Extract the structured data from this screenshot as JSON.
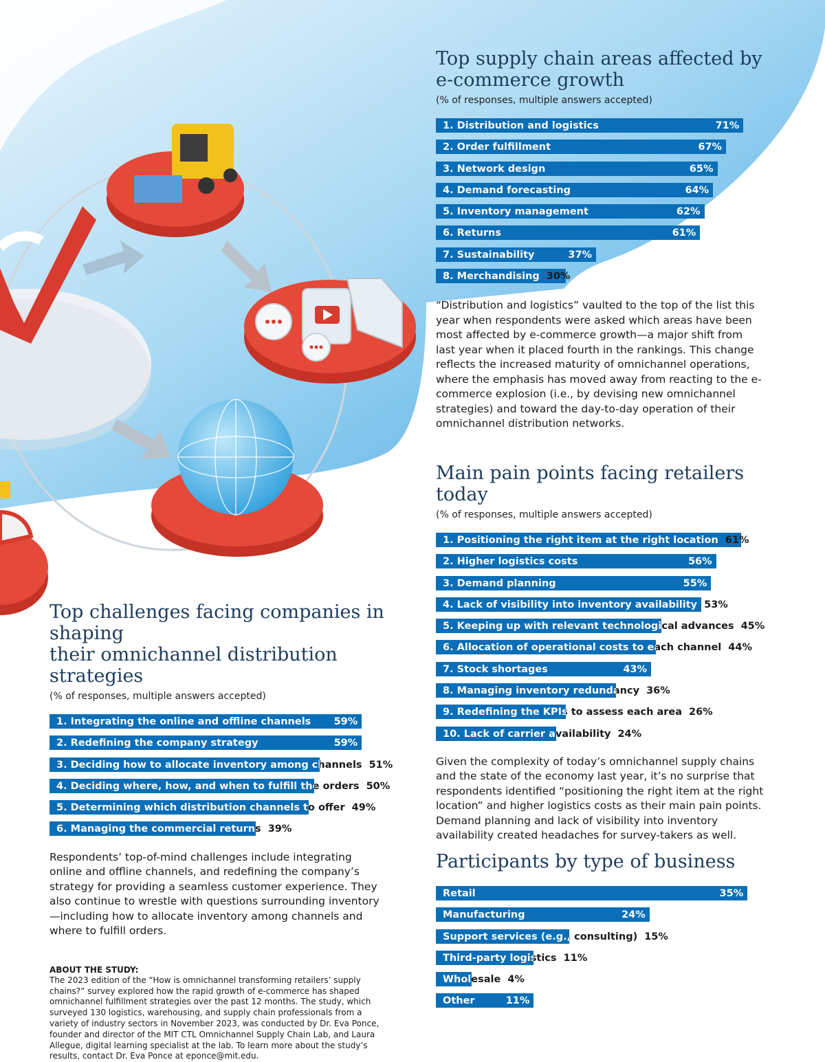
{
  "colors": {
    "bar": "#0a6fb8",
    "title": "#1d3c5c",
    "sky_light": "#e7f3fb",
    "sky_mid": "#9fd3f0",
    "sky_deep": "#3ea6e3",
    "platform_red": "#e4493a",
    "forklift_yellow": "#f2c21b"
  },
  "chart_data": [
    {
      "type": "bar",
      "orientation": "horizontal",
      "title": "Top supply chain areas affected by e-commerce growth",
      "subtitle": "(% of responses, multiple answers accepted)",
      "categories": [
        "1. Distribution and logistics",
        "2. Order fulfillment",
        "3. Network design",
        "4. Demand forecasting",
        "5. Inventory management",
        "6. Returns",
        "7. Sustainability",
        "8. Merchandising"
      ],
      "values": [
        71,
        67,
        65,
        64,
        62,
        61,
        37,
        30
      ],
      "value_labels": [
        "71%",
        "67%",
        "65%",
        "64%",
        "62%",
        "61%",
        "37%",
        "30%"
      ]
    },
    {
      "type": "bar",
      "orientation": "horizontal",
      "title": "Main pain points facing retailers today",
      "subtitle": "(% of responses, multiple answers accepted)",
      "categories": [
        "1. Positioning the right item at the right location",
        "2. Higher logistics costs",
        "3. Demand planning",
        "4. Lack of visibility into inventory availability",
        "5. Keeping up with relevant technological advances",
        "6. Allocation of operational costs to each channel",
        "7. Stock shortages",
        "8. Managing inventory redundancy",
        "9. Redefining the KPIs to assess each area",
        "10. Lack of carrier availability"
      ],
      "values": [
        61,
        56,
        55,
        53,
        45,
        44,
        43,
        36,
        26,
        24
      ],
      "value_labels": [
        "61%",
        "56%",
        "55%",
        "53%",
        "45%",
        "44%",
        "43%",
        "36%",
        "26%",
        "24%"
      ]
    },
    {
      "type": "bar",
      "orientation": "horizontal",
      "title": "Top challenges facing companies in shaping their omnichannel distribution strategies",
      "subtitle": "(% of responses, multiple answers accepted)",
      "categories": [
        "1. Integrating the online and offline channels",
        "2. Redefining the company strategy",
        "3. Deciding how to allocate inventory among channels",
        "4. Deciding where, how, and when to fulfill the orders",
        "5. Determining which distribution channels to offer",
        "6. Managing the commercial returns"
      ],
      "values": [
        59,
        59,
        51,
        50,
        49,
        39
      ],
      "value_labels": [
        "59%",
        "59%",
        "51%",
        "50%",
        "49%",
        "39%"
      ]
    },
    {
      "type": "bar",
      "orientation": "horizontal",
      "title": "Participants by type of business",
      "categories": [
        "Retail",
        "Manufacturing",
        "Support services (e.g., consulting)",
        "Third-party logistics",
        "Wholesale",
        "Other"
      ],
      "values": [
        35,
        24,
        15,
        11,
        4,
        11
      ],
      "value_labels": [
        "35%",
        "24%",
        "15%",
        "11%",
        "4%",
        "11%"
      ]
    }
  ],
  "texts": {
    "supply_title_1": "Top supply chain areas affected by",
    "supply_title_2": "e-commerce growth",
    "supply_sub": "(% of responses, multiple answers accepted)",
    "supply_body": "“Distribution and logistics” vaulted to the top of the list this year when respondents were asked which areas have been most affected by e-commerce growth—a major shift from last year when it placed fourth in the rankings. This change reflects the increased maturity of omnichannel operations, where the emphasis has moved away from reacting to the e-commerce explosion (i.e., by devising new omnichannel strategies) and toward the day-to-day operation of their omnichannel distribution networks.",
    "pain_title": "Main pain points facing retailers today",
    "pain_sub": "(% of responses, multiple answers accepted)",
    "pain_body": "Given the complexity of today’s omnichannel supply chains and the state of the economy last year, it’s no surprise that respondents identified “positioning the right item at the right location” and higher logistics costs as their main pain points. Demand planning and lack of visibility into inventory availability created headaches for survey-takers as well.",
    "challenge_title_1": "Top challenges facing companies in shaping",
    "challenge_title_2": "their omnichannel distribution strategies",
    "challenge_sub": "(% of responses, multiple answers accepted)",
    "challenge_body": "Respondents’ top-of-mind challenges include integrating online and offline channels, and redefining the company’s strategy for providing a seamless customer experience. They also continue to wrestle with questions surrounding inventory—including how to allocate inventory among channels and where to fulfill orders.",
    "participants_title": "Participants by type of business",
    "about_heading": "ABOUT THE STUDY:",
    "about_body": "The 2023 edition of the “How is omnichannel transforming retailers’ supply chains?” survey explored how the rapid growth of e-commerce has shaped omnichannel fulfillment strategies over the past 12 months. The study, which surveyed 130 logistics, warehousing, and supply chain professionals from a variety of industry sectors in November 2023, was conducted by Dr. Eva Ponce, founder and director of the MIT CTL Omnichannel Supply Chain Lab, and Laura Allegue, digital learning specialist at the lab. To learn more about the study’s results, contact Dr. Eva Ponce at eponce@mit.edu."
  }
}
